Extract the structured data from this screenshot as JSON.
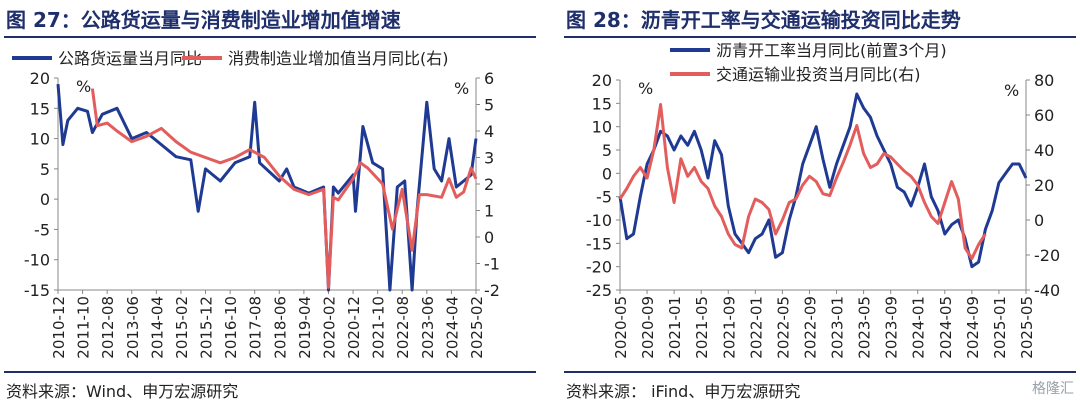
{
  "watermark": "格隆汇",
  "colors": {
    "navy": "#1f3a93",
    "red": "#e35d5d",
    "title": "#1f2f6b"
  },
  "chart_data": [
    {
      "type": "line",
      "title": "图 27：公路货运量与消费制造业增加值增速",
      "source": "资料来源：Wind、申万宏源研究",
      "left_unit": "%",
      "right_unit": "%",
      "ylim_left": [
        -15,
        20
      ],
      "ylim_right": [
        -2,
        6
      ],
      "yticks_left": [
        -15,
        -10,
        -5,
        0,
        5,
        10,
        15,
        20
      ],
      "yticks_right": [
        -2,
        -1,
        0,
        1,
        2,
        3,
        4,
        5,
        6
      ],
      "x_range": [
        "2010-12",
        "2025-02"
      ],
      "x_ticks": [
        "2010-12",
        "2011-10",
        "2012-08",
        "2013-06",
        "2014-04",
        "2015-02",
        "2015-12",
        "2016-10",
        "2017-08",
        "2018-06",
        "2019-04",
        "2020-02",
        "2020-12",
        "2021-10",
        "2022-08",
        "2023-06",
        "2024-04",
        "2025-02"
      ],
      "series": [
        {
          "name": "公路货运量当月同比",
          "axis": "left",
          "color": "#1f3a93",
          "points": [
            [
              "2010-12",
              19
            ],
            [
              "2011-02",
              9
            ],
            [
              "2011-04",
              13
            ],
            [
              "2011-08",
              15
            ],
            [
              "2011-12",
              14.5
            ],
            [
              "2012-02",
              11
            ],
            [
              "2012-06",
              14
            ],
            [
              "2012-12",
              15
            ],
            [
              "2013-06",
              10
            ],
            [
              "2013-12",
              11
            ],
            [
              "2014-06",
              9
            ],
            [
              "2014-12",
              7
            ],
            [
              "2015-06",
              6.5
            ],
            [
              "2015-09",
              -2
            ],
            [
              "2015-12",
              5
            ],
            [
              "2016-06",
              3
            ],
            [
              "2016-12",
              6
            ],
            [
              "2017-06",
              7
            ],
            [
              "2017-08",
              16
            ],
            [
              "2017-10",
              6
            ],
            [
              "2018-06",
              3
            ],
            [
              "2018-09",
              5
            ],
            [
              "2018-12",
              2
            ],
            [
              "2019-06",
              1
            ],
            [
              "2019-12",
              2
            ],
            [
              "2020-02",
              -15
            ],
            [
              "2020-04",
              2
            ],
            [
              "2020-06",
              1
            ],
            [
              "2020-12",
              4
            ],
            [
              "2021-01",
              -2
            ],
            [
              "2021-04",
              12
            ],
            [
              "2021-08",
              6
            ],
            [
              "2021-12",
              5
            ],
            [
              "2022-03",
              -15
            ],
            [
              "2022-06",
              2
            ],
            [
              "2022-09",
              3
            ],
            [
              "2022-12",
              -15
            ],
            [
              "2023-02",
              -2
            ],
            [
              "2023-06",
              16
            ],
            [
              "2023-09",
              5
            ],
            [
              "2023-12",
              3
            ],
            [
              "2024-03",
              10
            ],
            [
              "2024-06",
              2
            ],
            [
              "2024-09",
              3
            ],
            [
              "2024-12",
              4
            ],
            [
              "2025-02",
              10
            ]
          ]
        },
        {
          "name": "消费制造业增加值当月同比(右)",
          "axis": "right",
          "color": "#e35d5d",
          "points": [
            [
              "2012-02",
              5.6
            ],
            [
              "2012-04",
              4.2
            ],
            [
              "2012-08",
              4.3
            ],
            [
              "2012-12",
              4.0
            ],
            [
              "2013-06",
              3.6
            ],
            [
              "2013-12",
              3.8
            ],
            [
              "2014-06",
              4.1
            ],
            [
              "2014-12",
              3.6
            ],
            [
              "2015-06",
              3.2
            ],
            [
              "2015-12",
              3.0
            ],
            [
              "2016-06",
              2.8
            ],
            [
              "2016-12",
              3.0
            ],
            [
              "2017-06",
              3.3
            ],
            [
              "2017-12",
              3.0
            ],
            [
              "2018-06",
              2.3
            ],
            [
              "2018-12",
              1.8
            ],
            [
              "2019-06",
              1.6
            ],
            [
              "2019-12",
              1.8
            ],
            [
              "2020-02",
              -1.9
            ],
            [
              "2020-04",
              1.5
            ],
            [
              "2020-06",
              1.4
            ],
            [
              "2020-12",
              2.2
            ],
            [
              "2021-03",
              2.8
            ],
            [
              "2021-06",
              2.6
            ],
            [
              "2021-12",
              2.0
            ],
            [
              "2022-04",
              0.3
            ],
            [
              "2022-08",
              1.8
            ],
            [
              "2022-12",
              -0.5
            ],
            [
              "2023-03",
              1.6
            ],
            [
              "2023-06",
              1.6
            ],
            [
              "2023-12",
              1.5
            ],
            [
              "2024-03",
              2.2
            ],
            [
              "2024-06",
              1.5
            ],
            [
              "2024-09",
              1.7
            ],
            [
              "2024-12",
              2.6
            ],
            [
              "2025-02",
              2.2
            ]
          ]
        }
      ]
    },
    {
      "type": "line",
      "title": "图 28：沥青开工率与交通运输投资同比走势",
      "source": "资料来源：  iFind、申万宏源研究",
      "left_unit": "%",
      "right_unit": "%",
      "ylim_left": [
        -25,
        20
      ],
      "ylim_right": [
        -40,
        80
      ],
      "yticks_left": [
        -25,
        -20,
        -15,
        -10,
        -5,
        0,
        5,
        10,
        15,
        20
      ],
      "yticks_right": [
        -40,
        -20,
        0,
        20,
        40,
        60,
        80
      ],
      "x_range": [
        "2020-05",
        "2025-05"
      ],
      "x_ticks": [
        "2020-05",
        "2020-09",
        "2021-01",
        "2021-05",
        "2021-09",
        "2022-01",
        "2022-05",
        "2022-09",
        "2023-01",
        "2023-05",
        "2023-09",
        "2024-01",
        "2024-05",
        "2024-09",
        "2025-01",
        "2025-05"
      ],
      "series": [
        {
          "name": "沥青开工率当月同比(前置3个月)",
          "axis": "left",
          "color": "#1f3a93",
          "points": [
            [
              "2020-05",
              -5
            ],
            [
              "2020-06",
              -14
            ],
            [
              "2020-07",
              -13
            ],
            [
              "2020-08",
              -5
            ],
            [
              "2020-09",
              2
            ],
            [
              "2020-10",
              5
            ],
            [
              "2020-11",
              9
            ],
            [
              "2020-12",
              8
            ],
            [
              "2021-01",
              5
            ],
            [
              "2021-02",
              8
            ],
            [
              "2021-03",
              6
            ],
            [
              "2021-04",
              9
            ],
            [
              "2021-05",
              5
            ],
            [
              "2021-06",
              -1
            ],
            [
              "2021-07",
              7
            ],
            [
              "2021-08",
              4
            ],
            [
              "2021-09",
              -7
            ],
            [
              "2021-10",
              -13
            ],
            [
              "2021-11",
              -15
            ],
            [
              "2021-12",
              -17
            ],
            [
              "2022-01",
              -14
            ],
            [
              "2022-02",
              -13
            ],
            [
              "2022-03",
              -10
            ],
            [
              "2022-04",
              -18
            ],
            [
              "2022-05",
              -17
            ],
            [
              "2022-06",
              -10
            ],
            [
              "2022-07",
              -5
            ],
            [
              "2022-08",
              2
            ],
            [
              "2022-09",
              6
            ],
            [
              "2022-10",
              10
            ],
            [
              "2022-11",
              3
            ],
            [
              "2022-12",
              -3
            ],
            [
              "2023-01",
              2
            ],
            [
              "2023-02",
              6
            ],
            [
              "2023-03",
              10
            ],
            [
              "2023-04",
              17
            ],
            [
              "2023-05",
              14
            ],
            [
              "2023-06",
              12
            ],
            [
              "2023-07",
              8
            ],
            [
              "2023-08",
              5
            ],
            [
              "2023-09",
              2
            ],
            [
              "2023-10",
              -3
            ],
            [
              "2023-11",
              -4
            ],
            [
              "2023-12",
              -7
            ],
            [
              "2024-01",
              -3
            ],
            [
              "2024-02",
              2
            ],
            [
              "2024-03",
              -5
            ],
            [
              "2024-04",
              -8
            ],
            [
              "2024-05",
              -13
            ],
            [
              "2024-06",
              -11
            ],
            [
              "2024-07",
              -10
            ],
            [
              "2024-08",
              -14
            ],
            [
              "2024-09",
              -20
            ],
            [
              "2024-10",
              -19
            ],
            [
              "2024-11",
              -12
            ],
            [
              "2024-12",
              -8
            ],
            [
              "2025-01",
              -2
            ],
            [
              "2025-02",
              0
            ],
            [
              "2025-03",
              2
            ],
            [
              "2025-04",
              2
            ],
            [
              "2025-05",
              -1
            ]
          ]
        },
        {
          "name": "交通运输业投资当月同比(右)",
          "axis": "right",
          "color": "#e35d5d",
          "points": [
            [
              "2020-05",
              12
            ],
            [
              "2020-06",
              18
            ],
            [
              "2020-07",
              25
            ],
            [
              "2020-08",
              30
            ],
            [
              "2020-09",
              24
            ],
            [
              "2020-10",
              40
            ],
            [
              "2020-11",
              66
            ],
            [
              "2020-12",
              30
            ],
            [
              "2021-01",
              10
            ],
            [
              "2021-02",
              35
            ],
            [
              "2021-03",
              25
            ],
            [
              "2021-04",
              30
            ],
            [
              "2021-05",
              22
            ],
            [
              "2021-06",
              18
            ],
            [
              "2021-07",
              8
            ],
            [
              "2021-08",
              2
            ],
            [
              "2021-09",
              -8
            ],
            [
              "2021-10",
              -14
            ],
            [
              "2021-11",
              -16
            ],
            [
              "2021-12",
              2
            ],
            [
              "2022-01",
              12
            ],
            [
              "2022-02",
              10
            ],
            [
              "2022-03",
              6
            ],
            [
              "2022-04",
              -8
            ],
            [
              "2022-05",
              0
            ],
            [
              "2022-06",
              10
            ],
            [
              "2022-07",
              12
            ],
            [
              "2022-08",
              20
            ],
            [
              "2022-09",
              25
            ],
            [
              "2022-10",
              22
            ],
            [
              "2022-11",
              15
            ],
            [
              "2022-12",
              14
            ],
            [
              "2023-01",
              24
            ],
            [
              "2023-02",
              33
            ],
            [
              "2023-03",
              43
            ],
            [
              "2023-04",
              54
            ],
            [
              "2023-05",
              38
            ],
            [
              "2023-06",
              30
            ],
            [
              "2023-07",
              32
            ],
            [
              "2023-08",
              38
            ],
            [
              "2023-09",
              36
            ],
            [
              "2023-10",
              32
            ],
            [
              "2023-11",
              28
            ],
            [
              "2023-12",
              25
            ],
            [
              "2024-01",
              20
            ],
            [
              "2024-02",
              10
            ],
            [
              "2024-03",
              2
            ],
            [
              "2024-04",
              -2
            ],
            [
              "2024-05",
              10
            ],
            [
              "2024-06",
              22
            ],
            [
              "2024-07",
              12
            ],
            [
              "2024-08",
              -16
            ],
            [
              "2024-09",
              -22
            ],
            [
              "2024-10",
              -14
            ],
            [
              "2024-11",
              -8
            ]
          ]
        }
      ]
    }
  ]
}
